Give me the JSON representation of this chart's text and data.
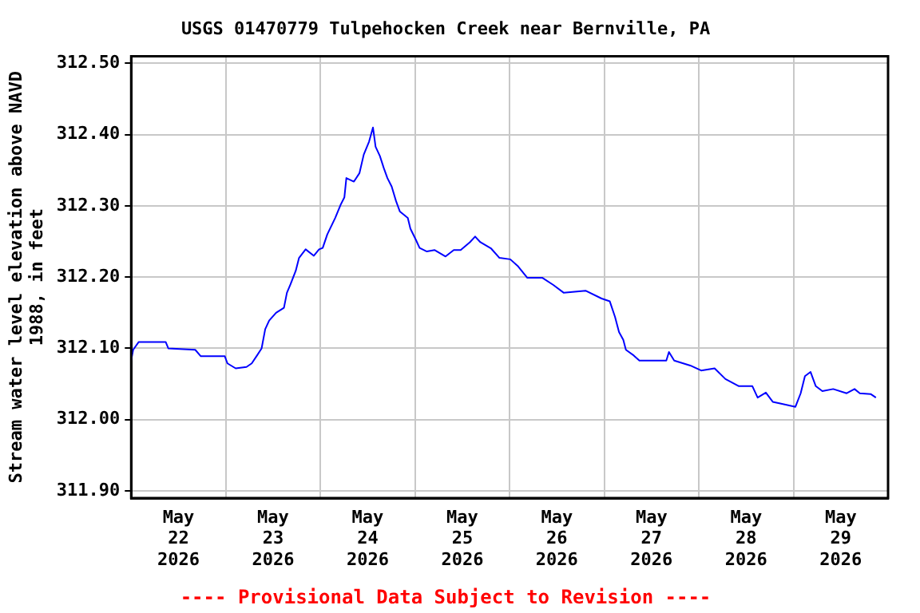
{
  "chart_data": {
    "type": "line",
    "title": "USGS 01470779 Tulpehocken Creek near Bernville, PA",
    "ylabel": "Stream water level elevation above NAVD 1988, in feet",
    "annotations": [
      "---- Provisional Data Subject to Revision ----"
    ],
    "x": [
      "2026-05-22T00:00",
      "2026-05-22T00:30",
      "2026-05-22T01:55",
      "2026-05-22T04:00",
      "2026-05-22T08:45",
      "2026-05-22T09:25",
      "2026-05-22T16:15",
      "2026-05-22T17:40",
      "2026-05-22T23:45",
      "2026-05-23T00:25",
      "2026-05-23T02:30",
      "2026-05-23T05:15",
      "2026-05-23T06:35",
      "2026-05-23T07:55",
      "2026-05-23T09:05",
      "2026-05-23T10:00",
      "2026-05-23T11:00",
      "2026-05-23T12:45",
      "2026-05-23T14:45",
      "2026-05-23T15:30",
      "2026-05-23T16:25",
      "2026-05-23T17:45",
      "2026-05-23T18:35",
      "2026-05-23T20:15",
      "2026-05-23T22:20",
      "2026-05-23T23:40",
      "2026-05-24T00:35",
      "2026-05-24T01:45",
      "2026-05-24T03:45",
      "2026-05-24T05:05",
      "2026-05-24T06:05",
      "2026-05-24T06:35",
      "2026-05-24T08:30",
      "2026-05-24T09:55",
      "2026-05-24T11:00",
      "2026-05-24T12:20",
      "2026-05-24T13:20",
      "2026-05-24T14:00",
      "2026-05-24T15:05",
      "2026-05-24T16:05",
      "2026-05-24T17:00",
      "2026-05-24T18:05",
      "2026-05-24T19:10",
      "2026-05-24T20:10",
      "2026-05-24T22:10",
      "2026-05-24T22:50",
      "2026-05-25T00:15",
      "2026-05-25T01:10",
      "2026-05-25T03:00",
      "2026-05-25T05:00",
      "2026-05-25T07:45",
      "2026-05-25T09:50",
      "2026-05-25T11:35",
      "2026-05-25T13:55",
      "2026-05-25T15:15",
      "2026-05-25T16:35",
      "2026-05-25T19:20",
      "2026-05-25T21:25",
      "2026-05-26T00:10",
      "2026-05-26T02:10",
      "2026-05-26T04:30",
      "2026-05-26T08:20",
      "2026-05-26T11:05",
      "2026-05-26T13:45",
      "2026-05-26T19:15",
      "2026-05-26T23:20",
      "2026-05-27T01:25",
      "2026-05-27T02:45",
      "2026-05-27T03:45",
      "2026-05-27T04:50",
      "2026-05-27T05:30",
      "2026-05-27T07:30",
      "2026-05-27T08:55",
      "2026-05-27T15:45",
      "2026-05-27T16:25",
      "2026-05-27T17:45",
      "2026-05-27T21:50",
      "2026-05-28T00:35",
      "2026-05-28T04:00",
      "2026-05-28T06:45",
      "2026-05-28T10:10",
      "2026-05-28T13:35",
      "2026-05-28T14:55",
      "2026-05-28T17:00",
      "2026-05-28T18:45",
      "2026-05-28T20:25",
      "2026-05-29T00:30",
      "2026-05-29T01:50",
      "2026-05-29T02:55",
      "2026-05-29T04:20",
      "2026-05-29T05:40",
      "2026-05-29T07:20",
      "2026-05-29T10:05",
      "2026-05-29T13:30",
      "2026-05-29T15:30",
      "2026-05-29T16:50",
      "2026-05-29T19:35",
      "2026-05-29T20:55"
    ],
    "series": [
      {
        "color": "#0000ff",
        "values": [
          312.083,
          312.098,
          312.109,
          312.109,
          312.109,
          312.1,
          312.098,
          312.089,
          312.089,
          312.079,
          312.072,
          312.074,
          312.079,
          312.09,
          312.1,
          312.127,
          312.139,
          312.15,
          312.157,
          312.178,
          312.19,
          312.209,
          312.227,
          312.239,
          312.23,
          312.239,
          312.241,
          312.26,
          312.283,
          312.301,
          312.312,
          312.339,
          312.334,
          312.346,
          312.372,
          312.39,
          312.41,
          312.383,
          312.37,
          312.353,
          312.339,
          312.327,
          312.307,
          312.292,
          312.283,
          312.268,
          312.252,
          312.241,
          312.236,
          312.238,
          312.229,
          312.238,
          312.238,
          312.249,
          312.257,
          312.249,
          312.24,
          312.227,
          312.225,
          312.215,
          312.199,
          312.199,
          312.189,
          312.178,
          312.181,
          312.17,
          312.166,
          312.144,
          312.123,
          312.112,
          312.098,
          312.09,
          312.083,
          312.083,
          312.095,
          312.083,
          312.076,
          312.069,
          312.072,
          312.057,
          312.047,
          312.047,
          312.031,
          312.038,
          312.025,
          312.023,
          312.018,
          312.037,
          312.061,
          312.067,
          312.047,
          312.04,
          312.043,
          312.037,
          312.043,
          312.037,
          312.036,
          312.031
        ]
      }
    ],
    "xlim": [
      "2026-05-22",
      "2026-05-30"
    ],
    "xticks": [
      {
        "value": "2026-05-22T12:00",
        "label": "May 22 2026"
      },
      {
        "value": "2026-05-23",
        "label": null
      },
      {
        "value": "2026-05-23T12:00",
        "label": "May 23 2026"
      },
      {
        "value": "2026-05-24",
        "label": null
      },
      {
        "value": "2026-05-24T12:00",
        "label": "May 24 2026"
      },
      {
        "value": "2026-05-25",
        "label": null
      },
      {
        "value": "2026-05-25T12:00",
        "label": "May 25 2026"
      },
      {
        "value": "2026-05-26",
        "label": null
      },
      {
        "value": "2026-05-26T12:00",
        "label": "May 26 2026"
      },
      {
        "value": "2026-05-27",
        "label": null
      },
      {
        "value": "2026-05-27T12:00",
        "label": "May 27 2026"
      },
      {
        "value": "2026-05-28",
        "label": null
      },
      {
        "value": "2026-05-28T12:00",
        "label": "May 28 2026"
      },
      {
        "value": "2026-05-29",
        "label": null
      },
      {
        "value": "2026-05-29T12:00",
        "label": "May 29 2026"
      }
    ],
    "ylim": [
      311.89,
      312.51
    ],
    "yticks": [
      {
        "value": 311.9,
        "label": "311.90"
      },
      {
        "value": 312.0,
        "label": "312.00"
      },
      {
        "value": 312.1,
        "label": "312.10"
      },
      {
        "value": 312.2,
        "label": "312.20"
      },
      {
        "value": 312.3,
        "label": "312.30"
      },
      {
        "value": 312.4,
        "label": "312.40"
      },
      {
        "value": 312.5,
        "label": "312.50"
      }
    ],
    "grid": true,
    "legend": false,
    "marker": "none",
    "line_style": "solid"
  }
}
